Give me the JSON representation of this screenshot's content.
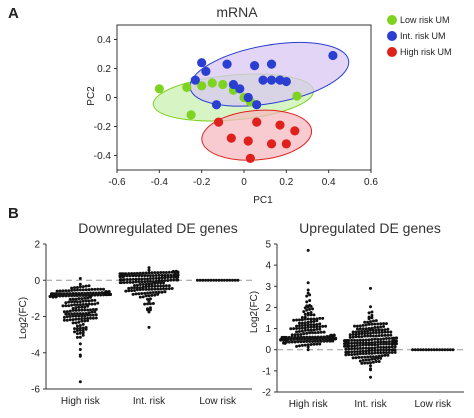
{
  "panel_labels": {
    "a": "A",
    "b": "B"
  },
  "colors": {
    "low": "#7ed321",
    "int": "#2a3fd1",
    "high": "#e0201b",
    "low_fill": "#c9f2b0",
    "int_fill": "#d9c7f2",
    "high_fill": "#f5b9c2",
    "dots": "#111111",
    "dash": "#999999"
  },
  "chart_data": [
    {
      "type": "scatter",
      "title": "mRNA",
      "xlabel": "PC1",
      "ylabel": "PC2",
      "xlim": [
        -0.6,
        0.6
      ],
      "ylim": [
        -0.5,
        0.5
      ],
      "xticks": [
        "-0.6",
        "-0.4",
        "-0.2",
        "0",
        "0.2",
        "0.4",
        "0.6"
      ],
      "yticks": [
        "-0.4",
        "-0.2",
        "0",
        "0.2",
        "0.4"
      ],
      "grid": false,
      "legend_position": "right",
      "series": [
        {
          "name": "Low risk UM",
          "color_key": "low",
          "points": [
            [
              -0.4,
              0.06
            ],
            [
              -0.27,
              0.07
            ],
            [
              -0.2,
              0.08
            ],
            [
              -0.25,
              -0.12
            ],
            [
              -0.1,
              0.09
            ],
            [
              -0.05,
              0.05
            ],
            [
              0.0,
              0.0
            ],
            [
              0.25,
              0.01
            ],
            [
              -0.15,
              0.1
            ],
            [
              0.03,
              -0.03
            ]
          ]
        },
        {
          "name": "Int. risk UM",
          "color_key": "int",
          "points": [
            [
              -0.2,
              0.24
            ],
            [
              -0.08,
              0.23
            ],
            [
              0.05,
              0.22
            ],
            [
              0.13,
              0.23
            ],
            [
              0.42,
              0.29
            ],
            [
              -0.23,
              0.12
            ],
            [
              -0.18,
              0.18
            ],
            [
              0.09,
              0.12
            ],
            [
              0.13,
              0.12
            ],
            [
              0.17,
              0.12
            ],
            [
              0.2,
              0.11
            ],
            [
              -0.05,
              0.09
            ],
            [
              -0.02,
              0.06
            ],
            [
              0.02,
              0.0
            ],
            [
              0.06,
              -0.05
            ],
            [
              -0.13,
              -0.05
            ]
          ]
        },
        {
          "name": "High risk UM",
          "color_key": "high",
          "points": [
            [
              -0.12,
              -0.17
            ],
            [
              0.06,
              -0.17
            ],
            [
              0.17,
              -0.19
            ],
            [
              0.24,
              -0.23
            ],
            [
              -0.06,
              -0.28
            ],
            [
              0.02,
              -0.3
            ],
            [
              0.13,
              -0.32
            ],
            [
              0.2,
              -0.32
            ],
            [
              0.03,
              -0.42
            ]
          ]
        }
      ],
      "ellipses": [
        {
          "name": "Low risk UM",
          "cx": -0.05,
          "cy": 0.0,
          "rx": 0.38,
          "ry": 0.155,
          "rot_deg": -5
        },
        {
          "name": "Int. risk UM",
          "cx": 0.12,
          "cy": 0.16,
          "rx": 0.38,
          "ry": 0.2,
          "rot_deg": -10
        },
        {
          "name": "High risk UM",
          "cx": 0.06,
          "cy": -0.26,
          "rx": 0.26,
          "ry": 0.17,
          "rot_deg": -5
        }
      ]
    },
    {
      "type": "scatter",
      "title": "Downregulated DE genes",
      "ylabel": "Log2(FC)",
      "categories": [
        "High risk",
        "Int. risk",
        "Low risk"
      ],
      "ylim": [
        -6,
        2
      ],
      "yticks": [
        "-6",
        "-4",
        "-2",
        "0",
        "2"
      ],
      "reference_line": 0,
      "distributions": [
        {
          "name": "High risk",
          "n": 220,
          "min": -5.6,
          "max": 0.1,
          "median": -0.9
        },
        {
          "name": "Int. risk",
          "n": 240,
          "min": -2.6,
          "max": 0.7,
          "median": 0.2
        },
        {
          "name": "Low risk",
          "n": 16,
          "min": 0.0,
          "max": 0.0,
          "median": 0.0
        }
      ]
    },
    {
      "type": "scatter",
      "title": "Upregulated DE genes",
      "ylabel": "Log2(FC)",
      "categories": [
        "High risk",
        "Int. risk",
        "Low risk"
      ],
      "ylim": [
        -2,
        5
      ],
      "yticks": [
        "-2",
        "-1",
        "0",
        "1",
        "2",
        "3",
        "4",
        "5"
      ],
      "reference_line": 0,
      "distributions": [
        {
          "name": "High risk",
          "n": 200,
          "min": 0.0,
          "max": 4.7,
          "median": 0.6
        },
        {
          "name": "Int. risk",
          "n": 240,
          "min": -1.3,
          "max": 2.9,
          "median": 0.3
        },
        {
          "name": "Low risk",
          "n": 16,
          "min": 0.0,
          "max": 0.0,
          "median": 0.0
        }
      ]
    }
  ]
}
